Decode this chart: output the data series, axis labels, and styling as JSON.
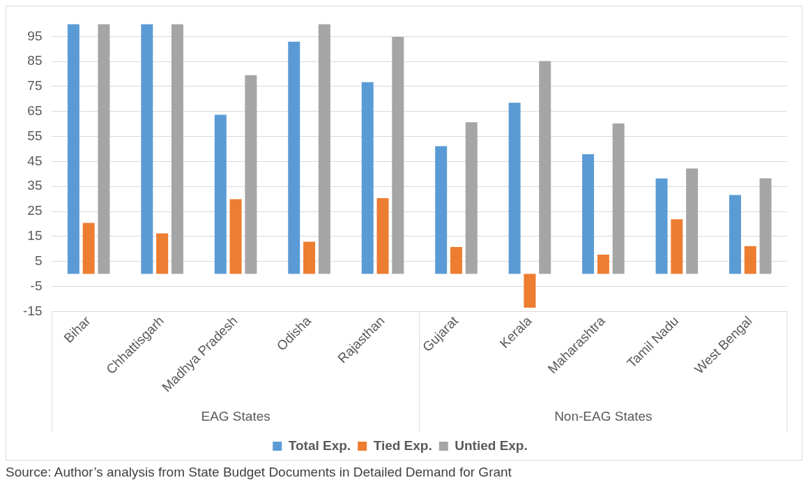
{
  "chart_data": {
    "type": "bar",
    "categories": [
      "Bihar",
      "Chhattisgarh",
      "Madhya Pradesh",
      "Odisha",
      "Rajasthan",
      "Gujarat",
      "Kerala",
      "Maharashtra",
      "Tamil Nadu",
      "West Bengal"
    ],
    "series": [
      {
        "name": "Total Exp.",
        "color": "#5b9bd5",
        "values": [
          100,
          100,
          63.7,
          92.9,
          76.7,
          51.1,
          68.5,
          47.9,
          38.2,
          31.6
        ]
      },
      {
        "name": "Tied Exp.",
        "color": "#ed7d31",
        "values": [
          20.4,
          16.2,
          29.9,
          12.9,
          30.3,
          10.8,
          -13.5,
          7.7,
          21.9,
          11.1
        ]
      },
      {
        "name": "Untied Exp.",
        "color": "#a5a5a5",
        "values": [
          100,
          100,
          79.5,
          100,
          94.8,
          60.7,
          85.2,
          60.2,
          42.2,
          38.3
        ]
      }
    ],
    "ylim": [
      -15,
      100
    ],
    "yticks": [
      -15,
      -5,
      5,
      15,
      25,
      35,
      45,
      55,
      65,
      75,
      85,
      95
    ],
    "grid": "y",
    "legend": "bottom",
    "annotations": [
      "EAG States",
      "Non-EAG States",
      "Source: Author’s analysis from State Budget Documents in Detailed Demand for Grant"
    ]
  }
}
